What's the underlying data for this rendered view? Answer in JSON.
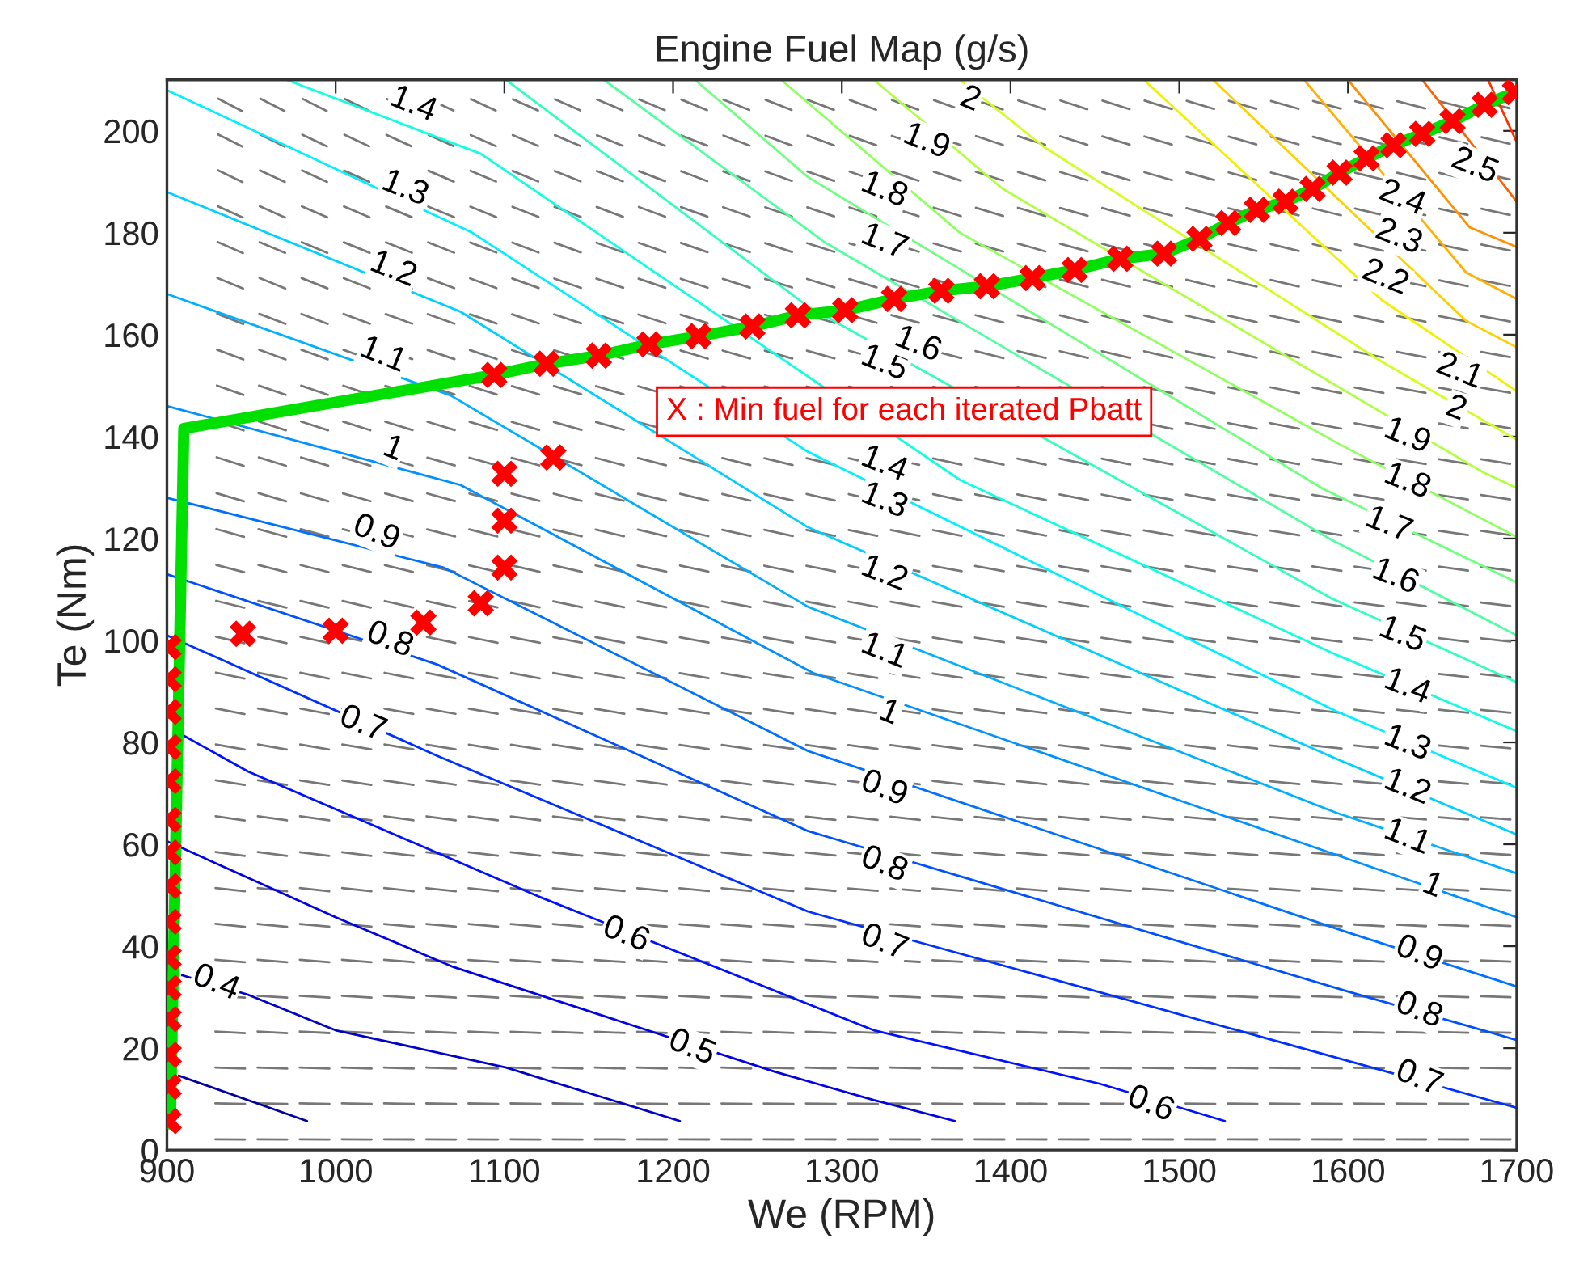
{
  "chart_data": {
    "type": "line",
    "title": "Engine Fuel Map (g/s)",
    "xlabel": "We (RPM)",
    "ylabel": "Te (Nm)",
    "xlim": [
      900,
      1700
    ],
    "xticks": [
      900,
      1000,
      1100,
      1200,
      1300,
      1400,
      1500,
      1600,
      1700
    ],
    "ylim": [
      0,
      210
    ],
    "yticks": [
      0,
      20,
      40,
      60,
      80,
      100,
      120,
      140,
      160,
      180,
      200
    ],
    "grid": false,
    "legend": false,
    "series": [
      {
        "color": "#0000a0",
        "x": [
          907,
          983
        ],
        "values": [
          14.6,
          5.7
        ]
      },
      {
        "color": "#0000c8",
        "x": [
          909,
          948,
          1000,
          1101,
          1204
        ],
        "values": [
          34.3,
          30.5,
          23.5,
          16.2,
          5.7
        ]
      },
      {
        "color": "#0000e0",
        "x": [
          900,
          1000,
          1070,
          1260,
          1319,
          1367
        ],
        "values": [
          60.6,
          45.7,
          35.9,
          15.4,
          9.8,
          5.7
        ]
      },
      {
        "color": "#0010ff",
        "x": [
          910,
          948,
          1120,
          1319,
          1453,
          1527
        ],
        "values": [
          81.3,
          74.3,
          49.8,
          23.5,
          13.0,
          5.7
        ]
      },
      {
        "color": "#0030ff",
        "x": [
          900,
          1060,
          1280,
          1600,
          1700
        ],
        "values": [
          101.0,
          77.4,
          46.8,
          17.5,
          8.3
        ]
      },
      {
        "color": "#0050ff",
        "x": [
          900,
          1060,
          1280,
          1600,
          1700
        ],
        "values": [
          113.0,
          95.3,
          62.6,
          31.1,
          21.6
        ]
      },
      {
        "color": "#0070ff",
        "x": [
          900,
          1064,
          1280,
          1600,
          1700
        ],
        "values": [
          128,
          114.3,
          78.3,
          42.7,
          32.1
        ]
      },
      {
        "color": "#0090ff",
        "x": [
          900,
          1074,
          1283,
          1608,
          1700
        ],
        "values": [
          146,
          130.5,
          93.6,
          56.2,
          45.7
        ]
      },
      {
        "color": "#00b0ff",
        "x": [
          900,
          1068,
          1280,
          1593,
          1700
        ],
        "values": [
          168,
          148.1,
          106.6,
          66.2,
          54.3
        ]
      },
      {
        "color": "#00d0ff",
        "x": [
          900,
          1074,
          1280,
          1593,
          1700
        ],
        "values": [
          188,
          164.5,
          122.2,
          76.8,
          61.9
        ]
      },
      {
        "color": "#00f0ff",
        "x": [
          900,
          1081,
          1280,
          1593,
          1700
        ],
        "values": [
          208,
          180.0,
          137.0,
          86.1,
          71.1
        ]
      },
      {
        "color": "#10ffe0",
        "x": [
          971,
          1086,
          1370,
          1593,
          1700
        ],
        "values": [
          210,
          195.5,
          131.5,
          97.2,
          82.2
        ]
      },
      {
        "color": "#30ffc0",
        "x": [
          1101,
          1280,
          1590,
          1700
        ],
        "values": [
          210,
          165.5,
          108.3,
          91.8
        ]
      },
      {
        "color": "#50ffa0",
        "x": [
          1159,
          1290,
          1590,
          1700
        ],
        "values": [
          210,
          178.1,
          119.8,
          101.0
        ]
      },
      {
        "color": "#70ff80",
        "x": [
          1213,
          1280,
          1585,
          1700
        ],
        "values": [
          210,
          190.9,
          129.8,
          111.4
        ]
      },
      {
        "color": "#90ff60",
        "x": [
          1264,
          1370,
          1595,
          1700
        ],
        "values": [
          210,
          180.0,
          138.5,
          120.3
        ]
      },
      {
        "color": "#b0ff40",
        "x": [
          1319,
          1395,
          1680,
          1700
        ],
        "values": [
          210,
          188.7,
          133.0,
          129.9
        ]
      },
      {
        "color": "#d0ff20",
        "x": [
          1370,
          1420,
          1620,
          1700
        ],
        "values": [
          210,
          196.8,
          154.7,
          139.4
        ]
      },
      {
        "color": "#f0f000",
        "x": [
          1479,
          1620,
          1700
        ],
        "values": [
          210,
          166.8,
          148.9
        ]
      },
      {
        "color": "#ffd000",
        "x": [
          1520,
          1670,
          1700
        ],
        "values": [
          210,
          162.7,
          157.5
        ]
      },
      {
        "color": "#ffb000",
        "x": [
          1574,
          1670,
          1700
        ],
        "values": [
          210,
          172.2,
          167.0
        ]
      },
      {
        "color": "#ff9000",
        "x": [
          1600,
          1672,
          1700
        ],
        "values": [
          210,
          181.1,
          177.2
        ]
      },
      {
        "color": "#ff6000",
        "x": [
          1644,
          1700
        ],
        "values": [
          210,
          186.1
        ]
      },
      {
        "color": "#ff3000",
        "x": [
          1683,
          1700
        ],
        "values": [
          210,
          197.8
        ]
      },
      {
        "color": "#00e000",
        "x": [
          902,
          910,
          1094,
          1125,
          1156,
          1186,
          1215,
          1247,
          1274,
          1302,
          1331,
          1359,
          1386,
          1413,
          1438,
          1465,
          1491,
          1512,
          1529,
          1546,
          1563,
          1579,
          1595,
          1611,
          1627,
          1644,
          1662,
          1681,
          1699
        ],
        "values": [
          5.1,
          141.6,
          152.1,
          154.3,
          155.9,
          158.1,
          159.7,
          161.6,
          163.8,
          164.8,
          167.0,
          168.6,
          169.5,
          171.1,
          172.7,
          174.9,
          175.9,
          178.8,
          181.9,
          184.5,
          186.1,
          188.6,
          191.8,
          194.6,
          197.2,
          199.4,
          201.9,
          205.1,
          207.6
        ]
      },
      {
        "type": "scatter",
        "marker": "cross",
        "color": "#ff0000",
        "x": [
          901,
          901,
          901,
          901,
          901,
          901,
          901,
          901,
          901,
          901,
          901,
          901,
          901,
          901,
          901,
          945,
          1000,
          1052,
          1086,
          1100,
          1100,
          1100,
          1129,
          1094,
          1125,
          1156,
          1186,
          1215,
          1247,
          1274,
          1302,
          1331,
          1359,
          1386,
          1413,
          1438,
          1465,
          1491,
          1512,
          1529,
          1546,
          1563,
          1579,
          1595,
          1611,
          1627,
          1644,
          1662,
          1681,
          1699
        ],
        "values": [
          5.7,
          12.4,
          18.7,
          25.7,
          31.8,
          37.8,
          44.8,
          51.8,
          58.4,
          64.8,
          72.4,
          79.1,
          86.0,
          92.4,
          98.7,
          101.3,
          101.9,
          103.5,
          107.3,
          114.3,
          123.5,
          132.7,
          135.9,
          152.1,
          154.3,
          155.9,
          158.1,
          159.7,
          161.6,
          163.8,
          164.8,
          167.0,
          168.6,
          169.5,
          171.1,
          172.7,
          174.9,
          175.9,
          178.8,
          181.9,
          184.5,
          186.1,
          188.6,
          191.8,
          194.6,
          197.2,
          199.4,
          201.9,
          205.1,
          207.6
        ]
      }
    ],
    "annotations": [
      "X : Min fuel for each iterated Pbatt",
      {
        "text": "0.4",
        "x": 929,
        "y": 32.7
      },
      {
        "text": "0.5",
        "x": 1211,
        "y": 20.0
      },
      {
        "text": "0.6",
        "x": 1172,
        "y": 42.2
      },
      {
        "text": "0.6",
        "x": 1483,
        "y": 8.9
      },
      {
        "text": "0.7",
        "x": 1016,
        "y": 83.5
      },
      {
        "text": "0.8",
        "x": 1032,
        "y": 100.0
      },
      {
        "text": "0.9",
        "x": 1024,
        "y": 121.0
      },
      {
        "text": "1",
        "x": 1034,
        "y": 137.5
      },
      {
        "text": "1.1",
        "x": 1028,
        "y": 155.9
      },
      {
        "text": "1.2",
        "x": 1034,
        "y": 172.7
      },
      {
        "text": "1.3",
        "x": 1041,
        "y": 188.6
      },
      {
        "text": "1.4",
        "x": 1046,
        "y": 205.1
      },
      {
        "text": "0.7",
        "x": 1325,
        "y": 40.6
      },
      {
        "text": "0.8",
        "x": 1325,
        "y": 55.9
      },
      {
        "text": "0.9",
        "x": 1325,
        "y": 70.8
      },
      {
        "text": "1",
        "x": 1328,
        "y": 85.7
      },
      {
        "text": "1.1",
        "x": 1325,
        "y": 97.8
      },
      {
        "text": "1.2",
        "x": 1325,
        "y": 113.0
      },
      {
        "text": "1.3",
        "x": 1325,
        "y": 127.3
      },
      {
        "text": "1.4",
        "x": 1325,
        "y": 134.5
      },
      {
        "text": "1.5",
        "x": 1325,
        "y": 154.3
      },
      {
        "text": "1.6",
        "x": 1345,
        "y": 158
      },
      {
        "text": "1.7",
        "x": 1325,
        "y": 178.1
      },
      {
        "text": "1.8",
        "x": 1325,
        "y": 188.3
      },
      {
        "text": "1.9",
        "x": 1350,
        "y": 197.8
      },
      {
        "text": "2",
        "x": 1376,
        "y": 206.1
      },
      {
        "text": "0.7",
        "x": 1642,
        "y": 14.0
      },
      {
        "text": "0.8",
        "x": 1642,
        "y": 27.3
      },
      {
        "text": "0.9",
        "x": 1642,
        "y": 38.4
      },
      {
        "text": "1",
        "x": 1650,
        "y": 51.8
      },
      {
        "text": "1.1",
        "x": 1635,
        "y": 61.3
      },
      {
        "text": "1.2",
        "x": 1635,
        "y": 71.1
      },
      {
        "text": "1.3",
        "x": 1635,
        "y": 79.7
      },
      {
        "text": "1.4",
        "x": 1635,
        "y": 90.8
      },
      {
        "text": "1.5",
        "x": 1632,
        "y": 101.0
      },
      {
        "text": "1.6",
        "x": 1628,
        "y": 112.4
      },
      {
        "text": "1.7",
        "x": 1624,
        "y": 122.6
      },
      {
        "text": "1.8",
        "x": 1635,
        "y": 131.1
      },
      {
        "text": "1.9",
        "x": 1635,
        "y": 140.0
      },
      {
        "text": "2",
        "x": 1664,
        "y": 145.4
      },
      {
        "text": "2.1",
        "x": 1666,
        "y": 152.7
      },
      {
        "text": "2.2",
        "x": 1622,
        "y": 171.1
      },
      {
        "text": "2.3",
        "x": 1630,
        "y": 179.1
      },
      {
        "text": "2.4",
        "x": 1632,
        "y": 186.7
      },
      {
        "text": "2.5",
        "x": 1675,
        "y": 193
      }
    ]
  }
}
